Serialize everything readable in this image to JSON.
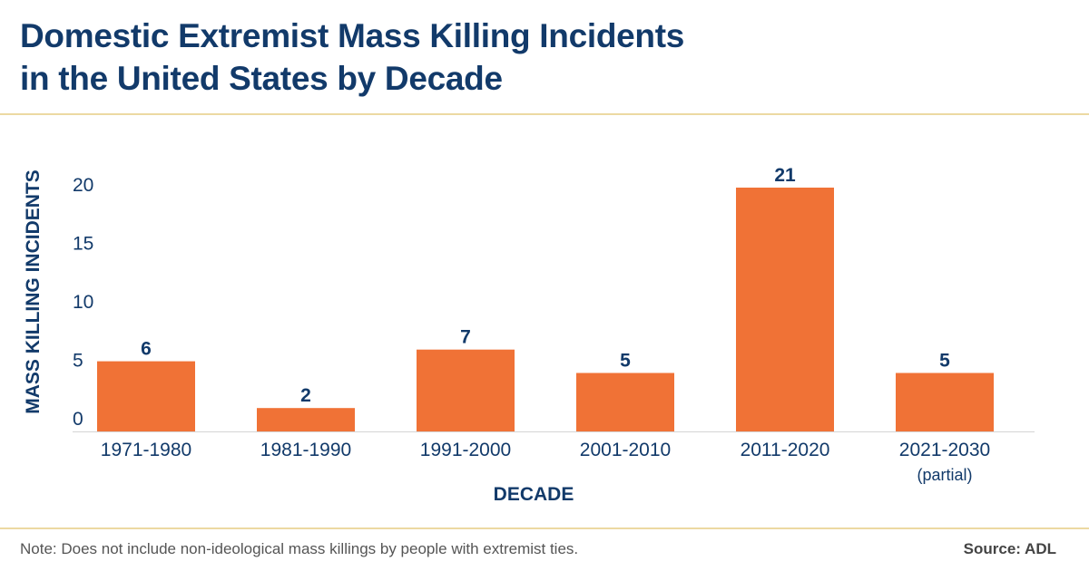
{
  "title_lines": [
    "Domestic Extremist Mass Killing Incidents",
    "in the United States by Decade"
  ],
  "note": "Note: Does not include non-ideological mass killings by people with extremist ties.",
  "source": "Source: ADL",
  "colors": {
    "bar": "#f07236",
    "text": "#123a6a",
    "rule": "#ecd9a2"
  },
  "chart_data": {
    "type": "bar",
    "title": "Domestic Extremist Mass Killing Incidents in the United States by Decade",
    "xlabel": "DECADE",
    "ylabel": "MASS KILLING INCIDENTS",
    "categories": [
      "1971-1980",
      "1981-1990",
      "1991-2000",
      "2001-2010",
      "2011-2020",
      "2021-2030"
    ],
    "category_notes": [
      "",
      "",
      "",
      "",
      "",
      "(partial)"
    ],
    "values": [
      6,
      2,
      7,
      5,
      21,
      5
    ],
    "yticks": [
      0,
      5,
      10,
      15,
      20
    ],
    "ylim": [
      0,
      21
    ],
    "grid": false,
    "legend": "none"
  }
}
